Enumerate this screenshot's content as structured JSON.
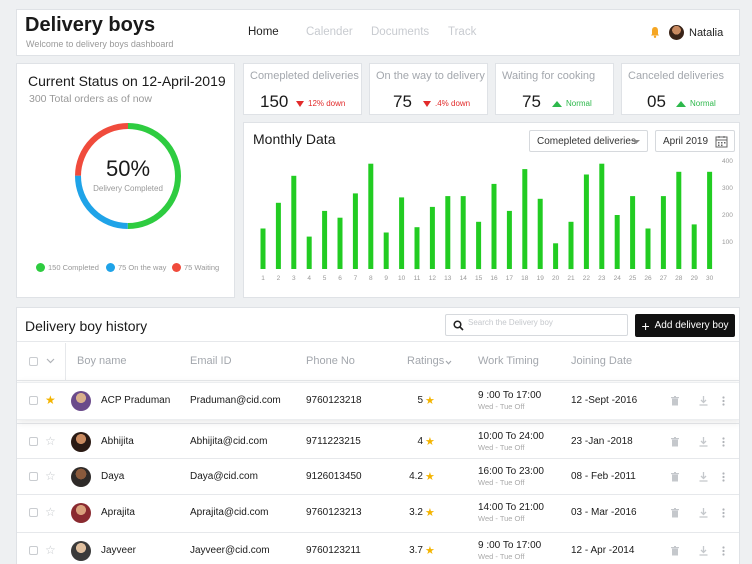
{
  "header": {
    "title": "Delivery boys",
    "subtitle": "Welcome to delivery boys dashboard",
    "nav": [
      "Home",
      "Calender",
      "Documents",
      "Track"
    ],
    "user": "Natalia"
  },
  "status": {
    "title": "Current Status on 12-April-2019",
    "subtitle": "300 Total orders as of now",
    "percent": "50%",
    "percent_label": "Delivery Completed",
    "legend": [
      {
        "label": "150 Completed",
        "color": "#2ecc40"
      },
      {
        "label": "75 On the way",
        "color": "#1fa3e8"
      },
      {
        "label": "75 Waiting",
        "color": "#f04b3c"
      }
    ]
  },
  "stats": [
    {
      "label": "Comepleted deliveries",
      "value": "150",
      "trend": "12% down",
      "dir": "down"
    },
    {
      "label": "On the way to delivery",
      "value": "75",
      "trend": ".4% down",
      "dir": "down"
    },
    {
      "label": "Waiting for cooking",
      "value": "75",
      "trend": "Normal",
      "dir": "up"
    },
    {
      "label": "Canceled deliveries",
      "value": "05",
      "trend": "Normal",
      "dir": "up"
    }
  ],
  "monthly": {
    "title": "Monthly Data",
    "select_metric": "Comepleted deliveries",
    "select_month": "April 2019"
  },
  "chart_data": {
    "type": "bar",
    "title": "Monthly Data",
    "categories": [
      "1",
      "2",
      "3",
      "4",
      "5",
      "6",
      "7",
      "8",
      "9",
      "10",
      "11",
      "12",
      "13",
      "14",
      "15",
      "16",
      "17",
      "18",
      "19",
      "20",
      "21",
      "22",
      "23",
      "24",
      "25",
      "26",
      "27",
      "28",
      "29",
      "30"
    ],
    "values": [
      150,
      245,
      345,
      120,
      215,
      190,
      280,
      390,
      135,
      265,
      155,
      230,
      270,
      270,
      175,
      315,
      215,
      370,
      260,
      95,
      175,
      350,
      390,
      200,
      270,
      150,
      270,
      360,
      165,
      360
    ],
    "y_ticks": [
      "100",
      "200",
      "300",
      "400"
    ],
    "ylim": [
      0,
      400
    ],
    "color": "#22cc22"
  },
  "history": {
    "title": "Delivery boy history",
    "search_placeholder": "Search the Delivery boy",
    "add_label": "Add delivery boy",
    "columns": [
      "Boy name",
      "Email ID",
      "Phone No",
      "Ratings",
      "Work Timing",
      "Joining Date"
    ],
    "rows": [
      {
        "name": "ACP Praduman",
        "email": "Praduman@cid.com",
        "phone": "9760123218",
        "rating": "5",
        "timing": "9 :00 To 17:00",
        "days": "Wed - Tue Off",
        "joined": "12 -Sept -2016",
        "starred": true
      },
      {
        "name": "Abhijita",
        "email": "Abhijita@cid.com",
        "phone": "9711223215",
        "rating": "4",
        "timing": "10:00 To 24:00",
        "days": "Wed - Tue Off",
        "joined": "23 -Jan -2018",
        "starred": false
      },
      {
        "name": "Daya",
        "email": "Daya@cid.com",
        "phone": "9126013450",
        "rating": "4.2",
        "timing": "16:00 To 23:00",
        "days": "Wed - Tue Off",
        "joined": "08 - Feb -2011",
        "starred": false
      },
      {
        "name": "Aprajita",
        "email": "Aprajita@cid.com",
        "phone": "9760123213",
        "rating": "3.2",
        "timing": "14:00 To 21:00",
        "days": "Wed - Tue Off",
        "joined": "03 - Mar -2016",
        "starred": false
      },
      {
        "name": "Jayveer",
        "email": "Jayveer@cid.com",
        "phone": "9760123211",
        "rating": "3.7",
        "timing": "9 :00 To 17:00",
        "days": "Wed - Tue Off",
        "joined": "12 - Apr -2014",
        "starred": false
      }
    ]
  }
}
